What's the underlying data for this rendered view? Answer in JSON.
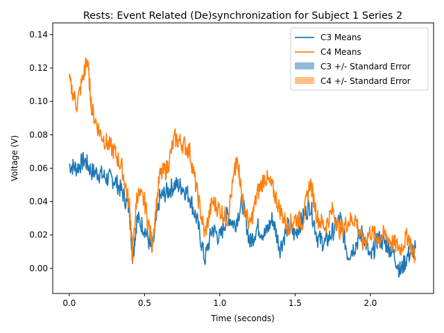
{
  "chart_data": {
    "type": "line",
    "title": "Rests: Event Related (De)synchronization for Subject 1 Series 2",
    "xlabel": "Time (seconds)",
    "ylabel": "Voltage (V)",
    "xlim": [
      -0.11,
      2.42
    ],
    "ylim": [
      -0.015,
      0.147
    ],
    "xticks": [
      0.0,
      0.5,
      1.0,
      1.5,
      2.0
    ],
    "xtick_labels": [
      "0.0",
      "0.5",
      "1.0",
      "1.5",
      "2.0"
    ],
    "yticks": [
      0.0,
      0.02,
      0.04,
      0.06,
      0.08,
      0.1,
      0.12,
      0.14
    ],
    "ytick_labels": [
      "0.00",
      "0.02",
      "0.04",
      "0.06",
      "0.08",
      "0.10",
      "0.12",
      "0.14"
    ],
    "grid": false,
    "legend_position": "top-right",
    "series": [
      {
        "name": "C3 Means",
        "color": "#1f77b4",
        "x": [
          0.0,
          0.05,
          0.1,
          0.15,
          0.2,
          0.25,
          0.3,
          0.35,
          0.4,
          0.42,
          0.45,
          0.5,
          0.55,
          0.6,
          0.65,
          0.7,
          0.75,
          0.8,
          0.85,
          0.9,
          0.95,
          1.0,
          1.05,
          1.1,
          1.15,
          1.2,
          1.25,
          1.3,
          1.35,
          1.4,
          1.45,
          1.5,
          1.55,
          1.6,
          1.65,
          1.7,
          1.75,
          1.8,
          1.85,
          1.9,
          1.95,
          2.0,
          2.05,
          2.1,
          2.15,
          2.2,
          2.25,
          2.3
        ],
        "y": [
          0.062,
          0.06,
          0.065,
          0.058,
          0.057,
          0.054,
          0.053,
          0.046,
          0.035,
          0.006,
          0.03,
          0.024,
          0.01,
          0.042,
          0.046,
          0.05,
          0.049,
          0.043,
          0.028,
          0.005,
          0.024,
          0.018,
          0.032,
          0.026,
          0.04,
          0.015,
          0.025,
          0.02,
          0.03,
          0.012,
          0.025,
          0.02,
          0.03,
          0.038,
          0.018,
          0.015,
          0.022,
          0.03,
          0.008,
          0.014,
          0.022,
          0.005,
          0.018,
          0.015,
          0.01,
          -0.002,
          0.008,
          0.012
        ]
      },
      {
        "name": "C4 Means",
        "color": "#ff7f0e",
        "x": [
          0.0,
          0.05,
          0.1,
          0.12,
          0.15,
          0.2,
          0.25,
          0.3,
          0.35,
          0.4,
          0.42,
          0.45,
          0.5,
          0.55,
          0.6,
          0.65,
          0.7,
          0.75,
          0.8,
          0.85,
          0.9,
          0.95,
          1.0,
          1.05,
          1.1,
          1.12,
          1.15,
          1.2,
          1.25,
          1.3,
          1.35,
          1.4,
          1.45,
          1.5,
          1.55,
          1.6,
          1.65,
          1.7,
          1.75,
          1.8,
          1.85,
          1.9,
          1.95,
          2.0,
          2.05,
          2.1,
          2.15,
          2.2,
          2.25,
          2.3
        ],
        "y": [
          0.112,
          0.098,
          0.118,
          0.125,
          0.095,
          0.082,
          0.075,
          0.07,
          0.06,
          0.038,
          0.008,
          0.045,
          0.04,
          0.015,
          0.055,
          0.06,
          0.078,
          0.075,
          0.07,
          0.045,
          0.02,
          0.04,
          0.035,
          0.03,
          0.058,
          0.065,
          0.04,
          0.025,
          0.045,
          0.055,
          0.048,
          0.035,
          0.025,
          0.03,
          0.028,
          0.052,
          0.03,
          0.025,
          0.035,
          0.022,
          0.028,
          0.03,
          0.015,
          0.022,
          0.018,
          0.02,
          0.015,
          0.012,
          0.02,
          0.005
        ]
      }
    ],
    "bands": [
      {
        "name": "C3 +/- Standard Error",
        "color": "#1f77b4",
        "opacity": 0.5
      },
      {
        "name": "C4 +/- Standard Error",
        "color": "#ff7f0e",
        "opacity": 0.5
      }
    ]
  }
}
